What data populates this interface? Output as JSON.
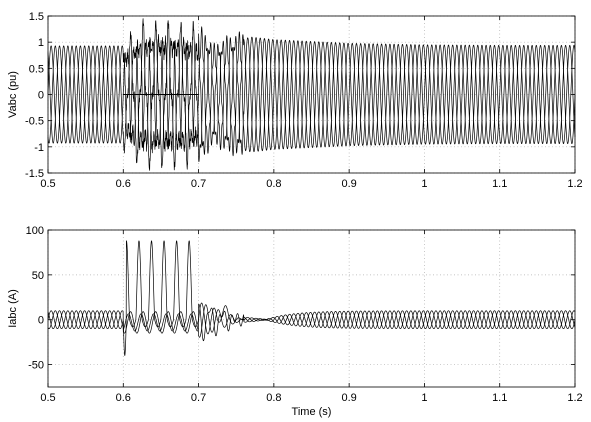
{
  "chart_data": [
    {
      "type": "line",
      "title": "",
      "xlabel": "",
      "ylabel": "Vabc (pu)",
      "xlim": [
        0.5,
        1.2
      ],
      "ylim": [
        -1.5,
        1.5
      ],
      "xticks": [
        "0.5",
        "0.6",
        "0.7",
        "0.8",
        "0.9",
        "1",
        "1.1",
        "1.2"
      ],
      "yticks": [
        "-1.5",
        "-1",
        "-0.5",
        "0",
        "0.5",
        "1",
        "1.5"
      ],
      "grid": true,
      "frequency_hz": 60,
      "series": [
        {
          "phase_deg": 0
        },
        {
          "phase_deg": -120
        },
        {
          "phase_deg": 120
        }
      ],
      "envelope": {
        "x": [
          0.5,
          0.6,
          0.62,
          0.65,
          0.68,
          0.7,
          0.72,
          0.74,
          0.77,
          0.8,
          0.9,
          1.0,
          1.1,
          1.2
        ],
        "y": [
          0.93,
          0.93,
          1.25,
          1.3,
          1.25,
          1.2,
          0.85,
          1.0,
          1.1,
          1.05,
          0.98,
          0.95,
          0.94,
          0.94
        ]
      },
      "fault_flat_segment": {
        "x": [
          0.6,
          0.7
        ],
        "y": 0
      }
    },
    {
      "type": "line",
      "title": "",
      "xlabel": "Time (s)",
      "ylabel": "Iabc (A)",
      "xlim": [
        0.5,
        1.2
      ],
      "ylim": [
        -75,
        100
      ],
      "xticks": [
        "0.5",
        "0.6",
        "0.7",
        "0.8",
        "0.9",
        "1",
        "1.1",
        "1.2"
      ],
      "yticks": [
        "-50",
        "0",
        "50",
        "100"
      ],
      "grid": true,
      "frequency_hz": 60,
      "series": [
        {
          "phase_deg": 0
        },
        {
          "phase_deg": -120
        },
        {
          "phase_deg": 120
        }
      ],
      "prefault_amplitude": 10,
      "fault_peak": 88,
      "fault_window": [
        0.6,
        0.7
      ],
      "recovery_min": {
        "x": 0.79,
        "y": 0.5
      },
      "postfault_amplitude": 10
    }
  ]
}
